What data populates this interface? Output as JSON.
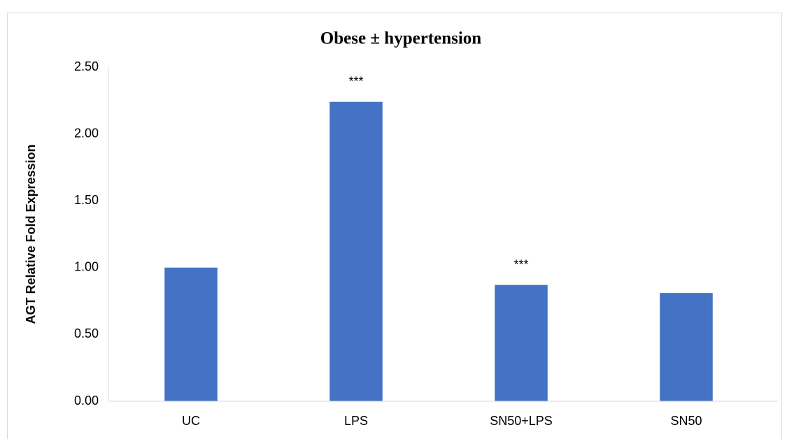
{
  "chart_data": {
    "type": "bar",
    "title": "Obese ± hypertension",
    "y_label": "AGT Relative Fold Expression",
    "categories": [
      "UC",
      "LPS",
      "SN50+LPS",
      "SN50"
    ],
    "values": [
      1.0,
      2.24,
      0.87,
      0.81
    ],
    "color": "#4472c4",
    "ylim": [
      0,
      2.5
    ],
    "yticks": [
      {
        "value": 0,
        "label": "0.00"
      },
      {
        "value": 0.5,
        "label": "0.50"
      },
      {
        "value": 1,
        "label": "1.00"
      },
      {
        "value": 1.5,
        "label": "1.50"
      },
      {
        "value": 2,
        "label": "2.00"
      },
      {
        "value": 2.5,
        "label": "2.50"
      }
    ],
    "grid": false,
    "annotations": [
      {
        "text": "***",
        "category": 1
      },
      {
        "text": "***",
        "category": 2
      }
    ]
  }
}
